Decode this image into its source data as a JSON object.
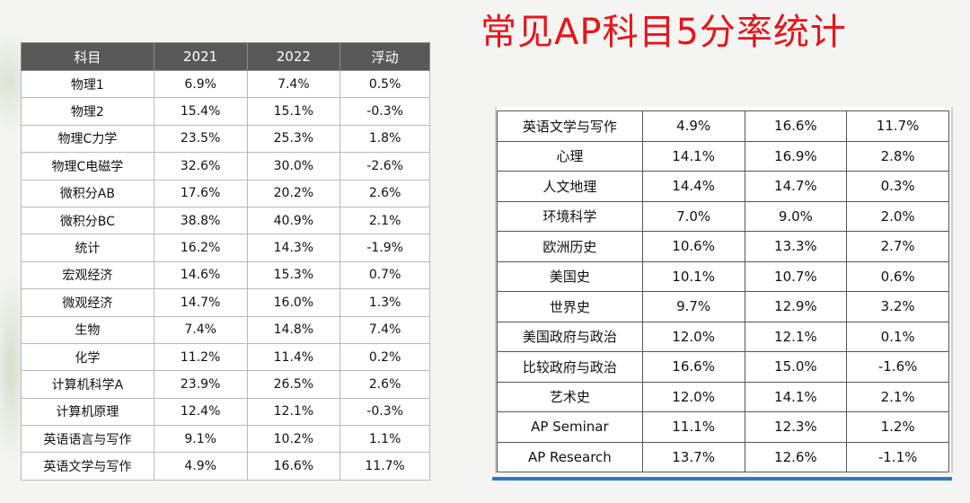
{
  "title": "常见AP科目5分率统计",
  "left_table": {
    "headers": [
      "科目",
      "2021",
      "2022",
      "浮动"
    ],
    "rows": [
      [
        "物理1",
        "6.9%",
        "7.4%",
        "0.5%"
      ],
      [
        "物理2",
        "15.4%",
        "15.1%",
        "-0.3%"
      ],
      [
        "物理C力学",
        "23.5%",
        "25.3%",
        "1.8%"
      ],
      [
        "物理C电磁学",
        "32.6%",
        "30.0%",
        "-2.6%"
      ],
      [
        "微积分AB",
        "17.6%",
        "20.2%",
        "2.6%"
      ],
      [
        "微积分BC",
        "38.8%",
        "40.9%",
        "2.1%"
      ],
      [
        "统计",
        "16.2%",
        "14.3%",
        "-1.9%"
      ],
      [
        "宏观经济",
        "14.6%",
        "15.3%",
        "0.7%"
      ],
      [
        "微观经济",
        "14.7%",
        "16.0%",
        "1.3%"
      ],
      [
        "生物",
        "7.4%",
        "14.8%",
        "7.4%"
      ],
      [
        "化学",
        "11.2%",
        "11.4%",
        "0.2%"
      ],
      [
        "计算机科学A",
        "23.9%",
        "26.5%",
        "2.6%"
      ],
      [
        "计算机原理",
        "12.4%",
        "12.1%",
        "-0.3%"
      ],
      [
        "英语语言与写作",
        "9.1%",
        "10.2%",
        "1.1%"
      ],
      [
        "英语文学与写作",
        "4.9%",
        "16.6%",
        "11.7%"
      ]
    ]
  },
  "right_table": {
    "rows": [
      [
        "英语文学与写作",
        "4.9%",
        "16.6%",
        "11.7%"
      ],
      [
        "心理",
        "14.1%",
        "16.9%",
        "2.8%"
      ],
      [
        "人文地理",
        "14.4%",
        "14.7%",
        "0.3%"
      ],
      [
        "环境科学",
        "7.0%",
        "9.0%",
        "2.0%"
      ],
      [
        "欧洲历史",
        "10.6%",
        "13.3%",
        "2.7%"
      ],
      [
        "美国史",
        "10.1%",
        "10.7%",
        "0.6%"
      ],
      [
        "世界史",
        "9.7%",
        "12.9%",
        "3.2%"
      ],
      [
        "美国政府与政治",
        "12.0%",
        "12.1%",
        "0.1%"
      ],
      [
        "比较政府与政治",
        "16.6%",
        "15.0%",
        "-1.6%"
      ],
      [
        "艺术史",
        "12.0%",
        "14.1%",
        "2.1%"
      ],
      [
        "AP Seminar",
        "11.1%",
        "12.3%",
        "1.2%"
      ],
      [
        "AP Research",
        "13.7%",
        "12.6%",
        "-1.1%"
      ]
    ]
  }
}
